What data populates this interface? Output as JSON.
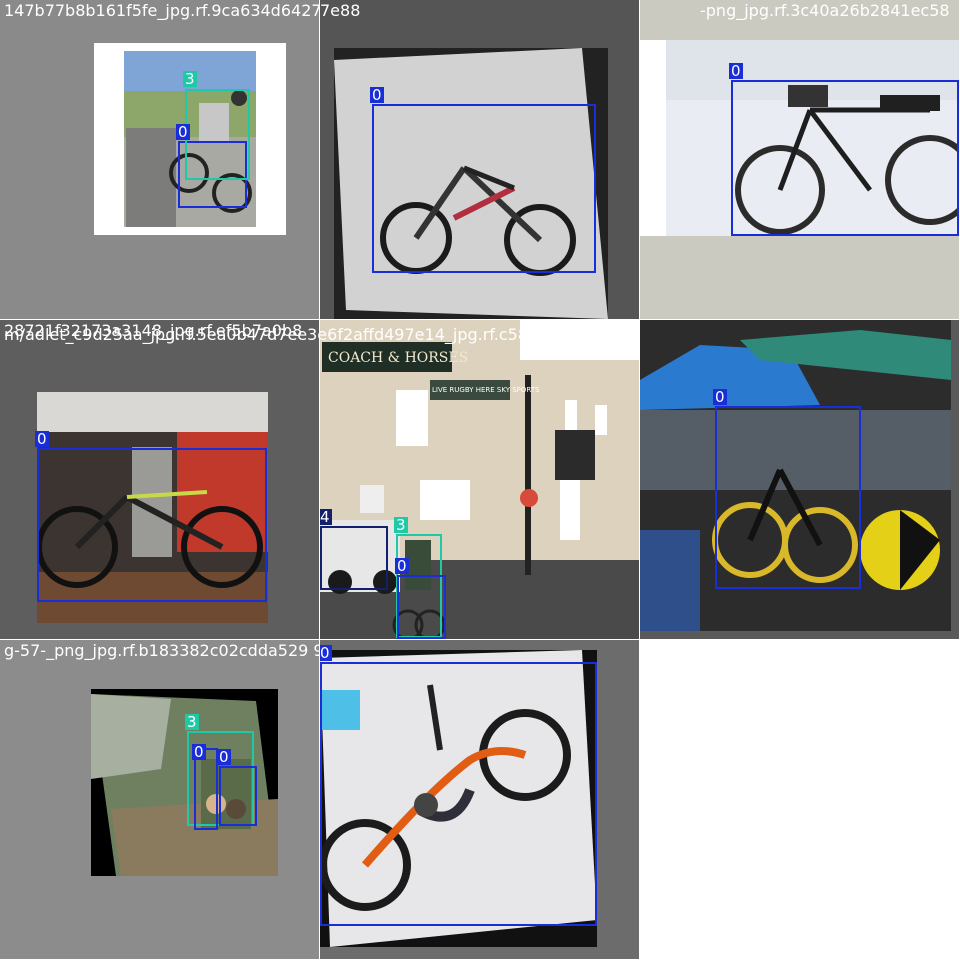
{
  "tiles": [
    {
      "filename": "147b77b8b161f5fe_jpg.rf.9ca634d6427c2667-apng_jpg.rf.77b4394c5e1c38968697356",
      "labels": [
        "3",
        "0"
      ]
    },
    {
      "filename": "7e88",
      "labels": [
        "0"
      ]
    },
    {
      "filename": "-png_jpg.rf.3c40a26b2841ec58",
      "labels": [
        "0"
      ]
    },
    {
      "filename": "28721f32173a3148_jpg.rf.ef5b7a0b8",
      "labels": [
        "0"
      ]
    },
    {
      "filename": "m/adlet_c9d25aa_jpg.rf.5ea0b47d7ee3e6f2affd497e14_jpg.rf.c5809396d1",
      "labels": [
        "4",
        "3",
        "0"
      ]
    },
    {
      "filename": "",
      "labels": [
        "0"
      ]
    },
    {
      "filename": "g-57-_png_jpg.rf.b183382c02cdda529 9874dpng_jpg.rf.df164924493b6958318546",
      "labels": [
        "3",
        "0",
        "0"
      ]
    },
    {
      "filename": "",
      "labels": [
        "0"
      ]
    }
  ],
  "signage": {
    "pub_name": "COACH & HORSES",
    "banner": "LIVE RUGBY HERE SKY SPORTS"
  },
  "colors": {
    "class_0": "#1a2ed8",
    "class_3": "#20c9a6",
    "class_4": "#12206e"
  }
}
